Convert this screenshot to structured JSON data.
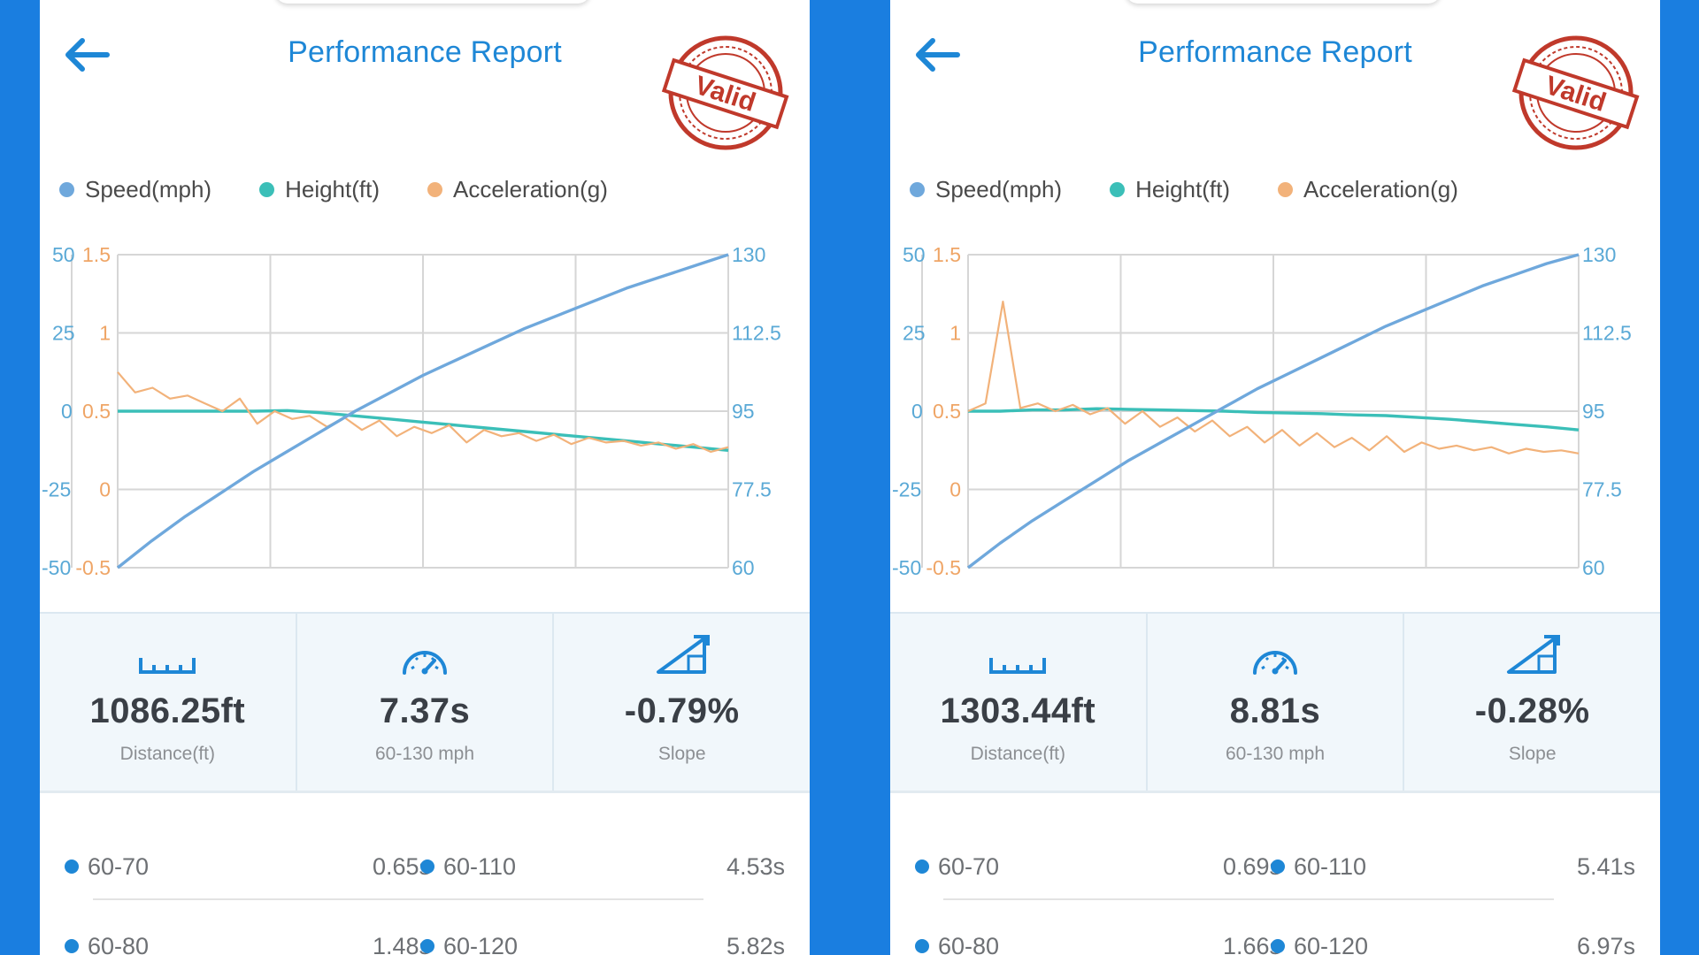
{
  "colors": {
    "accent": "#1e87d6",
    "speed": "#6fa8dc",
    "height": "#3bbfb8",
    "acceleration": "#f2b27a",
    "stamp": "#c0392b"
  },
  "panels": [
    {
      "header": {
        "title": "Performance Report",
        "back_icon": "arrow-left-icon",
        "stamp_text": "Valid"
      },
      "legend": [
        {
          "label": "Speed(mph)",
          "color": "#6fa8dc"
        },
        {
          "label": "Height(ft)",
          "color": "#3bbfb8"
        },
        {
          "label": "Acceleration(g)",
          "color": "#f2b27a"
        }
      ],
      "chart_data": {
        "type": "line",
        "axes": {
          "height_ticks": [
            "50",
            "25",
            "0",
            "-25",
            "-50"
          ],
          "accel_ticks": [
            "1.5",
            "1",
            "0.5",
            "0",
            "-0.5"
          ],
          "speed_ticks": [
            "130",
            "112.5",
            "95",
            "77.5",
            "60"
          ],
          "height_range": [
            -50,
            50
          ],
          "accel_range": [
            -0.5,
            1.5
          ],
          "speed_range": [
            60,
            130
          ]
        },
        "grid": true,
        "series": [
          {
            "name": "Speed(mph)",
            "axis": "speed",
            "values": [
              60,
              66,
              71.5,
              76.5,
              81.5,
              86,
              90.5,
              95,
              99,
              103,
              106.5,
              110,
              113.5,
              116.5,
              119.5,
              122.5,
              125,
              127.5,
              130
            ]
          },
          {
            "name": "Height(ft)",
            "axis": "height",
            "values": [
              0,
              0,
              0,
              0,
              0,
              0.2,
              -0.5,
              -1.5,
              -2.5,
              -3.5,
              -4.5,
              -5.5,
              -6.5,
              -7.5,
              -8.5,
              -9.5,
              -10.5,
              -11.5,
              -12.5
            ]
          },
          {
            "name": "Acceleration(g)",
            "axis": "accel",
            "values": [
              0.75,
              0.62,
              0.65,
              0.58,
              0.6,
              0.55,
              0.5,
              0.58,
              0.42,
              0.5,
              0.45,
              0.47,
              0.4,
              0.46,
              0.38,
              0.44,
              0.34,
              0.4,
              0.36,
              0.41,
              0.3,
              0.38,
              0.34,
              0.36,
              0.31,
              0.35,
              0.29,
              0.33,
              0.3,
              0.31,
              0.28,
              0.3,
              0.26,
              0.29,
              0.24,
              0.27
            ]
          }
        ]
      },
      "stats": [
        {
          "icon": "ruler-icon",
          "value": "1086.25ft",
          "label": "Distance(ft)"
        },
        {
          "icon": "speedometer-icon",
          "value": "7.37s",
          "label": "60-130 mph"
        },
        {
          "icon": "slope-icon",
          "value": "-0.79%",
          "label": "Slope"
        }
      ],
      "splits": [
        {
          "range": "60-70",
          "time": "0.65s"
        },
        {
          "range": "60-110",
          "time": "4.53s"
        },
        {
          "range": "60-80",
          "time": "1.48s"
        },
        {
          "range": "60-120",
          "time": "5.82s"
        }
      ]
    },
    {
      "header": {
        "title": "Performance Report",
        "back_icon": "arrow-left-icon",
        "stamp_text": "Valid"
      },
      "legend": [
        {
          "label": "Speed(mph)",
          "color": "#6fa8dc"
        },
        {
          "label": "Height(ft)",
          "color": "#3bbfb8"
        },
        {
          "label": "Acceleration(g)",
          "color": "#f2b27a"
        }
      ],
      "chart_data": {
        "type": "line",
        "axes": {
          "height_ticks": [
            "50",
            "25",
            "0",
            "-25",
            "-50"
          ],
          "accel_ticks": [
            "1.5",
            "1",
            "0.5",
            "0",
            "-0.5"
          ],
          "speed_ticks": [
            "130",
            "112.5",
            "95",
            "77.5",
            "60"
          ],
          "height_range": [
            -50,
            50
          ],
          "accel_range": [
            -0.5,
            1.5
          ],
          "speed_range": [
            60,
            130
          ]
        },
        "grid": true,
        "series": [
          {
            "name": "Speed(mph)",
            "axis": "speed",
            "values": [
              60,
              65.5,
              70.5,
              75,
              79.5,
              84,
              88,
              92,
              96,
              100,
              103.5,
              107,
              110.5,
              114,
              117,
              120,
              123,
              125.5,
              128,
              130
            ]
          },
          {
            "name": "Height(ft)",
            "axis": "height",
            "values": [
              0,
              0,
              0.4,
              0.4,
              0.8,
              0.6,
              0.4,
              0.2,
              0,
              -0.4,
              -0.6,
              -0.8,
              -1.2,
              -1.4,
              -2,
              -2.6,
              -3.4,
              -4.2,
              -5,
              -6
            ]
          },
          {
            "name": "Acceleration(g)",
            "axis": "accel",
            "values": [
              0.5,
              0.55,
              1.2,
              0.52,
              0.55,
              0.5,
              0.54,
              0.48,
              0.52,
              0.42,
              0.5,
              0.4,
              0.46,
              0.37,
              0.44,
              0.34,
              0.4,
              0.3,
              0.38,
              0.28,
              0.36,
              0.27,
              0.33,
              0.25,
              0.34,
              0.24,
              0.3,
              0.26,
              0.28,
              0.25,
              0.27,
              0.23,
              0.26,
              0.24,
              0.25,
              0.23
            ]
          }
        ]
      },
      "stats": [
        {
          "icon": "ruler-icon",
          "value": "1303.44ft",
          "label": "Distance(ft)"
        },
        {
          "icon": "speedometer-icon",
          "value": "8.81s",
          "label": "60-130 mph"
        },
        {
          "icon": "slope-icon",
          "value": "-0.28%",
          "label": "Slope"
        }
      ],
      "splits": [
        {
          "range": "60-70",
          "time": "0.69s"
        },
        {
          "range": "60-110",
          "time": "5.41s"
        },
        {
          "range": "60-80",
          "time": "1.66s"
        },
        {
          "range": "60-120",
          "time": "6.97s"
        }
      ]
    }
  ]
}
